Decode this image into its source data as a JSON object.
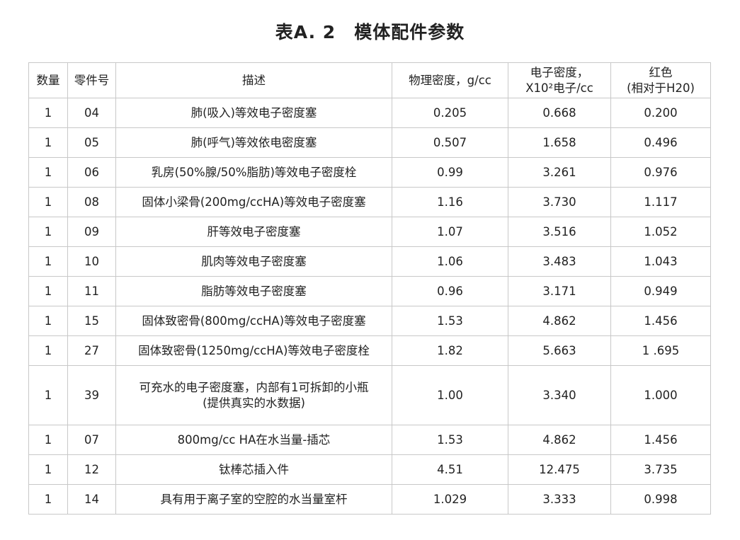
{
  "title": "表A. 2　模体配件参数",
  "headers": [
    "数量",
    "零件号",
    "描述",
    "物理密度，g/cc",
    "电子密度，\nX10²电子/cc",
    "红色\n(相对于H20)"
  ],
  "rows": [
    [
      "1",
      "04",
      "肺(吸入)等效电子密度塞",
      "0.205",
      "0.668",
      "0.200"
    ],
    [
      "1",
      "05",
      "肺(呼气)等效依电密度塞",
      "0.507",
      "1.658",
      "0.496"
    ],
    [
      "1",
      "06",
      "乳房(50%腺/50%脂肪)等效电子密度栓",
      "0.99",
      "3.261",
      "0.976"
    ],
    [
      "1",
      "08",
      "固体小梁骨(200mg/ccHA)等效电子密度塞",
      "1.16",
      "3.730",
      "1.117"
    ],
    [
      "1",
      "09",
      "肝等效电子密度塞",
      "1.07",
      "3.516",
      "1.052"
    ],
    [
      "1",
      "10",
      "肌肉等效电子密度塞",
      "1.06",
      "3.483",
      "1.043"
    ],
    [
      "1",
      "11",
      "脂肪等效电子密度塞",
      "0.96",
      "3.171",
      "0.949"
    ],
    [
      "1",
      "15",
      "固体致密骨(800mg/ccHA)等效电子密度塞",
      "1.53",
      "4.862",
      "1.456"
    ],
    [
      "1",
      "27",
      "固体致密骨(1250mg/ccHA)等效电子密度栓",
      "1.82",
      "5.663",
      "1 .695"
    ],
    [
      "1",
      "39",
      "可充水的电子密度塞，内部有1可拆卸的小瓶\n(提供真实的水数据)",
      "1.00",
      "3.340",
      "1.000"
    ],
    [
      "1",
      "07",
      "800mg/cc HA在水当量-插芯",
      "1.53",
      "4.862",
      "1.456"
    ],
    [
      "1",
      "12",
      "钛棒芯插入件",
      "4.51",
      "12.475",
      "3.735"
    ],
    [
      "1",
      "14",
      "具有用于离子室的空腔的水当量室杆",
      "1.029",
      "3.333",
      "0.998"
    ]
  ]
}
